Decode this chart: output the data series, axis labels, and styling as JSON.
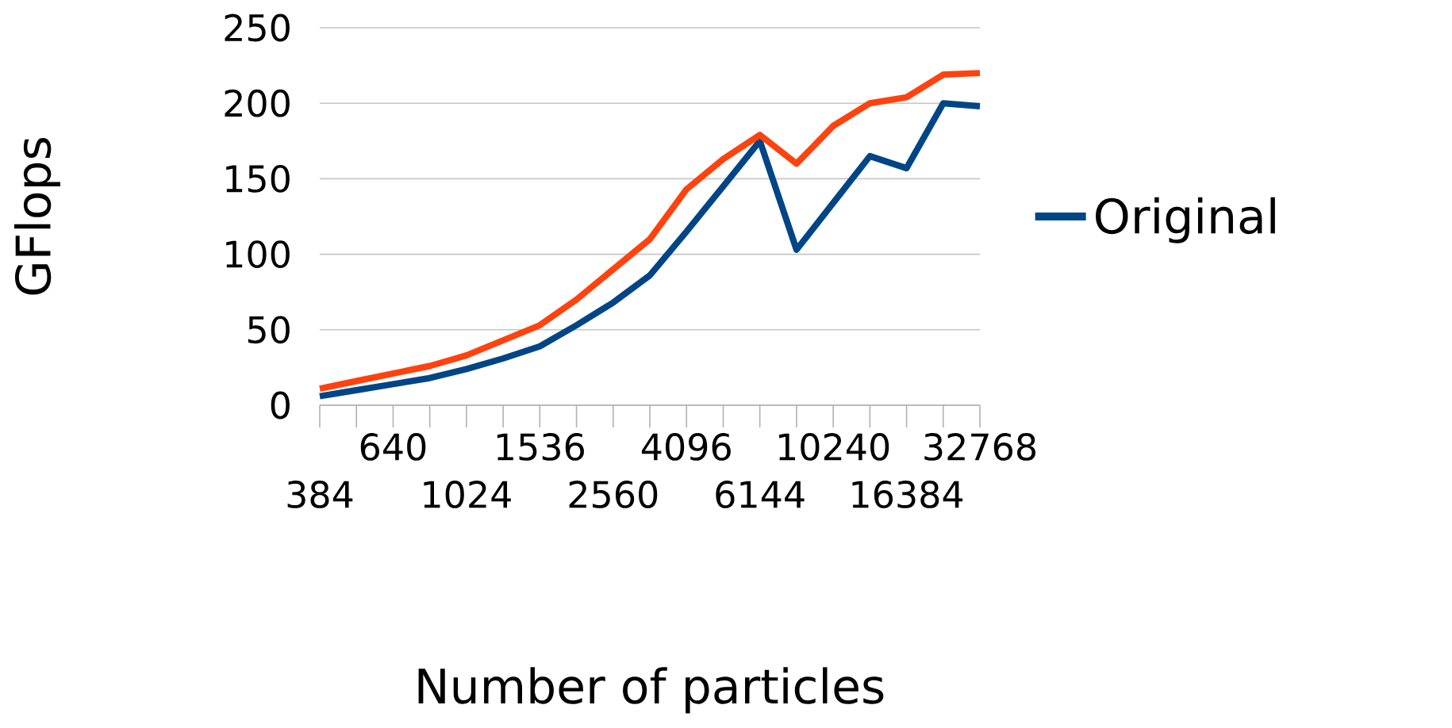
{
  "chart_data": {
    "type": "line",
    "xlabel": "Number of particles",
    "ylabel": "GFlops",
    "categories": [
      "384",
      null,
      "640",
      null,
      "1024",
      null,
      "1536",
      null,
      "2560",
      null,
      "4096",
      null,
      "6144",
      null,
      "10240",
      null,
      "16384",
      null,
      "32768"
    ],
    "series": [
      {
        "name": "Original",
        "color": "#004586",
        "values": [
          6,
          10,
          14,
          18,
          24,
          31,
          39,
          53,
          68,
          86,
          115,
          145,
          175,
          103,
          134,
          165,
          157,
          200,
          198
        ]
      },
      {
        "color": "#ff420e",
        "values": [
          11,
          16,
          21,
          26,
          33,
          43,
          53,
          70,
          90,
          110,
          143,
          163,
          179,
          160,
          185,
          200,
          204,
          219,
          220
        ]
      }
    ],
    "ylim": [
      0,
      250
    ],
    "yticks": [
      0,
      50,
      100,
      150,
      200,
      250
    ],
    "grid": "y",
    "legend": "right",
    "marker": "none",
    "line_style": "solid"
  }
}
